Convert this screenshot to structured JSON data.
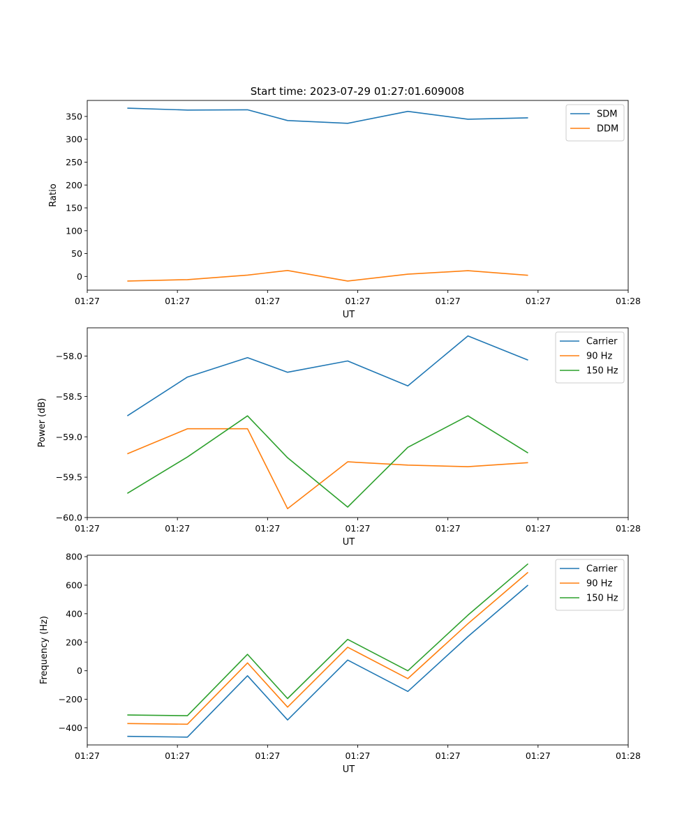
{
  "figure_title": "Start time: 2023-07-29 01:27:01.609008",
  "chart_data": [
    {
      "type": "line",
      "title": "Start time: 2023-07-29 01:27:01.609008",
      "xlabel": "UT",
      "ylabel": "Ratio",
      "xlim": [
        0,
        13.5
      ],
      "ylim": [
        -30,
        385
      ],
      "x": [
        1,
        2.5,
        4,
        5,
        6.5,
        8,
        9.5,
        11
      ],
      "xticks": [
        0,
        2.25,
        4.5,
        6.75,
        9,
        11.25,
        13.5
      ],
      "xtick_labels": [
        "01:27",
        "01:27",
        "01:27",
        "01:27",
        "01:27",
        "01:27",
        "01:28"
      ],
      "yticks": [
        0,
        50,
        100,
        150,
        200,
        250,
        300,
        350
      ],
      "ytick_labels": [
        "0",
        "50",
        "100",
        "150",
        "200",
        "250",
        "300",
        "350"
      ],
      "legend_position": "top-right",
      "series": [
        {
          "name": "SDM",
          "color": "#1f77b4",
          "values": [
            368,
            364,
            364.5,
            341,
            335,
            361,
            344,
            347
          ]
        },
        {
          "name": "DDM",
          "color": "#ff7f0e",
          "values": [
            -10,
            -7,
            3,
            13,
            -10,
            5,
            12.5,
            2.5
          ]
        }
      ]
    },
    {
      "type": "line",
      "title": "",
      "xlabel": "UT",
      "ylabel": "Power (dB)",
      "xlim": [
        0,
        13.5
      ],
      "ylim": [
        -60.0,
        -57.65
      ],
      "x": [
        1,
        2.5,
        4,
        5,
        6.5,
        8,
        9.5,
        11
      ],
      "xticks": [
        0,
        2.25,
        4.5,
        6.75,
        9,
        11.25,
        13.5
      ],
      "xtick_labels": [
        "01:27",
        "01:27",
        "01:27",
        "01:27",
        "01:27",
        "01:27",
        "01:28"
      ],
      "yticks": [
        -60.0,
        -59.5,
        -59.0,
        -58.5,
        -58.0
      ],
      "ytick_labels": [
        "−60.0",
        "−59.5",
        "−59.0",
        "−58.5",
        "−58.0"
      ],
      "legend_position": "top-right",
      "series": [
        {
          "name": "Carrier",
          "color": "#1f77b4",
          "values": [
            -58.74,
            -58.26,
            -58.02,
            -58.2,
            -58.06,
            -58.37,
            -57.75,
            -58.05
          ]
        },
        {
          "name": "90 Hz",
          "color": "#ff7f0e",
          "values": [
            -59.21,
            -58.9,
            -58.9,
            -59.89,
            -59.31,
            -59.35,
            -59.37,
            -59.32
          ]
        },
        {
          "name": "150 Hz",
          "color": "#2ca02c",
          "values": [
            -59.7,
            -59.25,
            -58.74,
            -59.26,
            -59.87,
            -59.13,
            -58.74,
            -59.2
          ]
        }
      ]
    },
    {
      "type": "line",
      "title": "",
      "xlabel": "UT",
      "ylabel": "Frequency (Hz)",
      "xlim": [
        0,
        13.5
      ],
      "ylim": [
        -520,
        810
      ],
      "x": [
        1,
        2.5,
        4,
        5,
        6.5,
        8,
        9.5,
        11
      ],
      "xticks": [
        0,
        2.25,
        4.5,
        6.75,
        9,
        11.25,
        13.5
      ],
      "xtick_labels": [
        "01:27",
        "01:27",
        "01:27",
        "01:27",
        "01:27",
        "01:27",
        "01:28"
      ],
      "yticks": [
        -400,
        -200,
        0,
        200,
        400,
        600,
        800
      ],
      "ytick_labels": [
        "−400",
        "−200",
        "0",
        "200",
        "400",
        "600",
        "800"
      ],
      "legend_position": "top-right",
      "series": [
        {
          "name": "Carrier",
          "color": "#1f77b4",
          "values": [
            -460,
            -465,
            -35,
            -345,
            75,
            -145,
            240,
            600
          ]
        },
        {
          "name": "90 Hz",
          "color": "#ff7f0e",
          "values": [
            -370,
            -375,
            55,
            -255,
            165,
            -55,
            330,
            690
          ]
        },
        {
          "name": "150 Hz",
          "color": "#2ca02c",
          "values": [
            -310,
            -315,
            115,
            -195,
            220,
            0,
            390,
            750
          ]
        }
      ]
    }
  ]
}
